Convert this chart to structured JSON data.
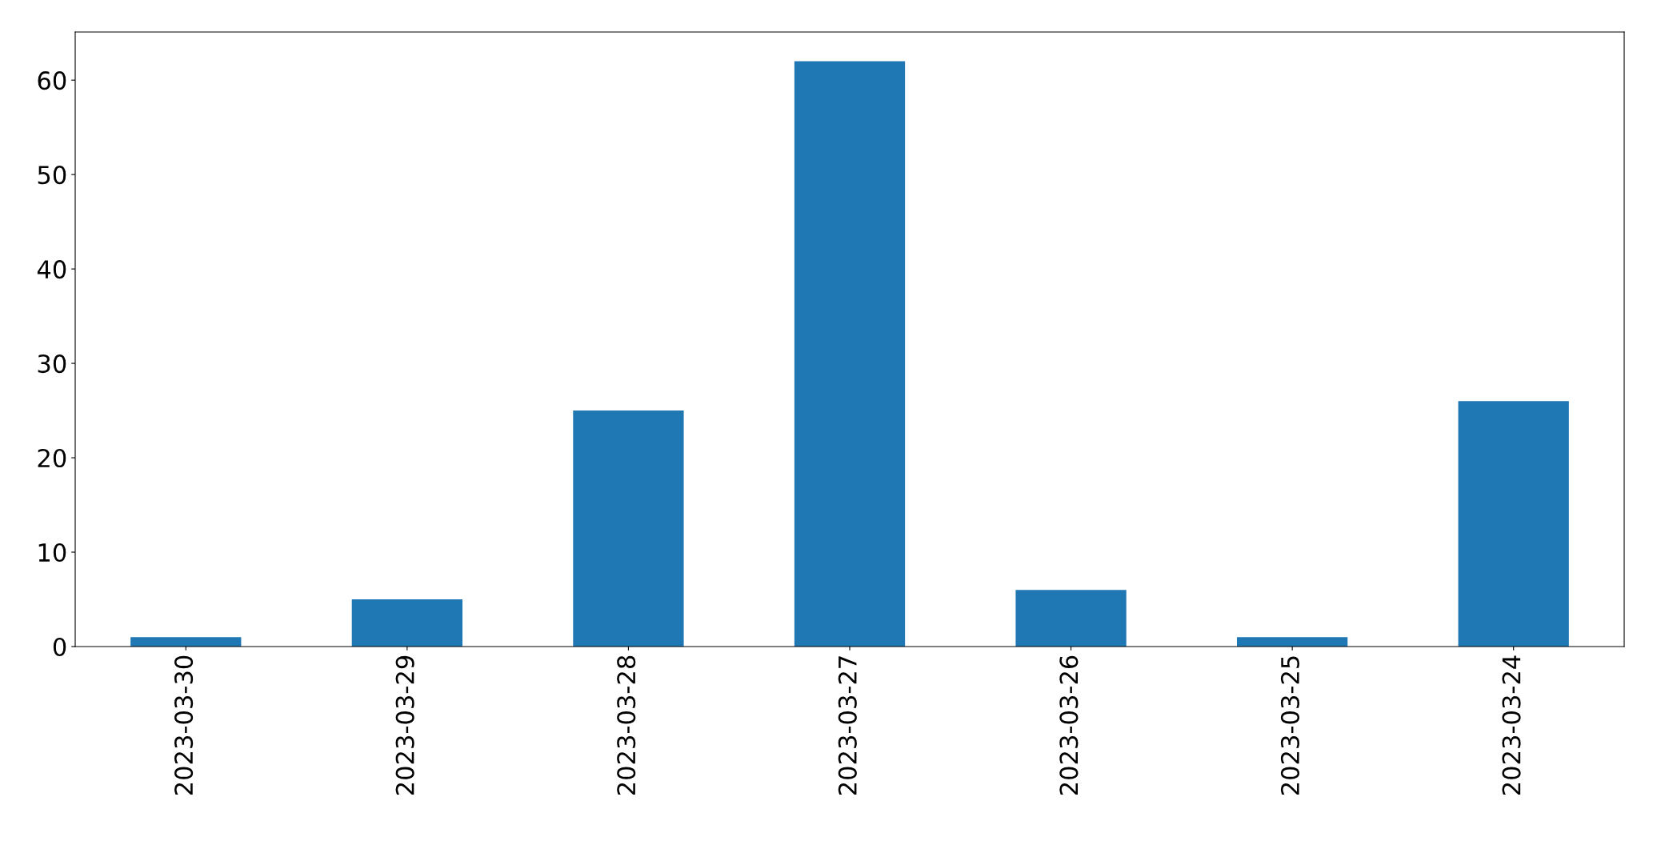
{
  "chart_data": {
    "type": "bar",
    "categories": [
      "2023-03-30",
      "2023-03-29",
      "2023-03-28",
      "2023-03-27",
      "2023-03-26",
      "2023-03-25",
      "2023-03-24"
    ],
    "values": [
      1,
      5,
      25,
      62,
      6,
      1,
      26
    ],
    "color": "#1f77b4",
    "ylim": [
      0,
      65.1
    ],
    "yticks": [
      0,
      10,
      20,
      30,
      40,
      50,
      60
    ],
    "grid": false
  }
}
